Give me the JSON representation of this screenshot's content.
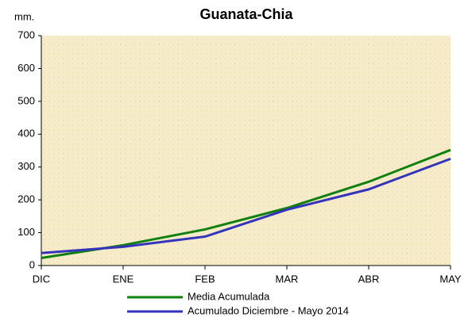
{
  "chart_data": {
    "type": "line",
    "title": "Guanata-Chia",
    "y_label": "mm.",
    "categories": [
      "DIC",
      "ENE",
      "FEB",
      "MAR",
      "ABR",
      "MAY"
    ],
    "series": [
      {
        "name": "Media Acumulada",
        "color": "#108010",
        "values": [
          23,
          62,
          110,
          175,
          255,
          352
        ]
      },
      {
        "name": "Acumulado  Diciembre - Mayo  2014",
        "color": "#3333bb",
        "values": [
          38,
          57,
          88,
          170,
          232,
          325
        ]
      }
    ],
    "ylim": [
      0,
      700
    ],
    "yticks": [
      0,
      100,
      200,
      300,
      400,
      500,
      600,
      700
    ],
    "grid": false
  }
}
